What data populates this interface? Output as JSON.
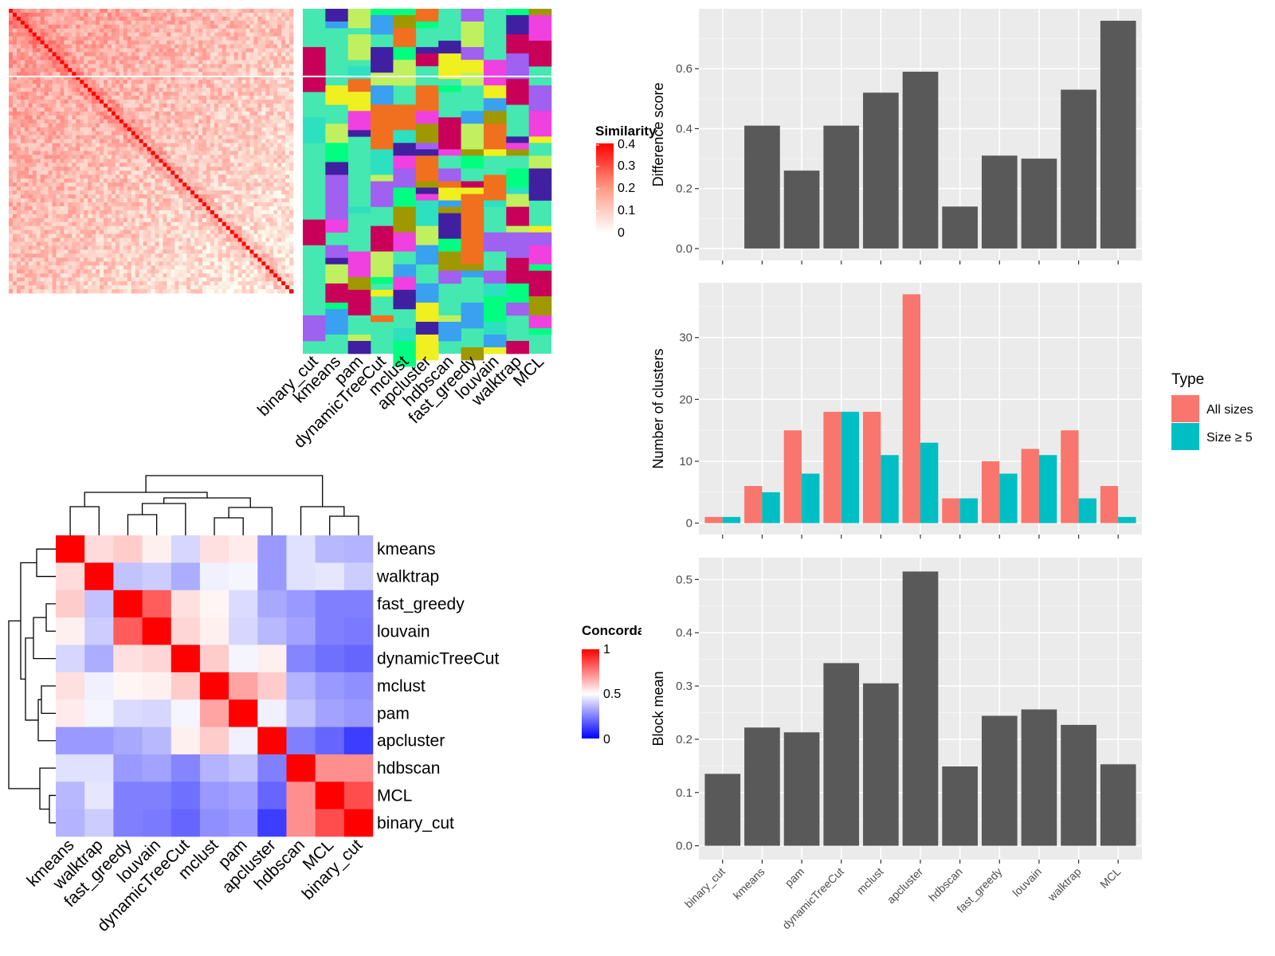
{
  "colors": {
    "sim_high": "#ff0000",
    "sim_low": "#ffffff",
    "conc_high": "#ff0000",
    "conc_mid": "#ffffff",
    "conc_low": "#0000ff",
    "bar_fill": "#595959",
    "panel_bg": "#ebebeb",
    "all_sizes": "#f8766d",
    "size5": "#00bfc4",
    "tree": "#000000"
  },
  "similarity_panel": {
    "legend_title": "Similarity",
    "legend_ticks": [
      "0.4",
      "0.3",
      "0.2",
      "0.1",
      "0"
    ],
    "method_labels": [
      "binary_cut",
      "kmeans",
      "pam",
      "dynamicTreeCut",
      "mclust",
      "apcluster",
      "hdbscan",
      "fast_greedy",
      "louvain",
      "walktrap",
      "MCL"
    ]
  },
  "concordance_panel": {
    "legend_title": "Concordance",
    "legend_ticks": [
      "1",
      "0.5",
      "0"
    ]
  },
  "chart_data": [
    {
      "type": "heatmap",
      "id": "concordance",
      "rows": [
        "kmeans",
        "walktrap",
        "fast_greedy",
        "louvain",
        "dynamicTreeCut",
        "mclust",
        "pam",
        "apcluster",
        "hdbscan",
        "MCL",
        "binary_cut"
      ],
      "columns": [
        "kmeans",
        "walktrap",
        "fast_greedy",
        "louvain",
        "dynamicTreeCut",
        "mclust",
        "pam",
        "apcluster",
        "hdbscan",
        "MCL",
        "binary_cut"
      ],
      "values": [
        [
          1.0,
          0.57,
          0.6,
          0.53,
          0.42,
          0.56,
          0.54,
          0.3,
          0.44,
          0.36,
          0.35
        ],
        [
          0.57,
          1.0,
          0.38,
          0.4,
          0.34,
          0.47,
          0.48,
          0.3,
          0.44,
          0.45,
          0.4
        ],
        [
          0.6,
          0.38,
          1.0,
          0.82,
          0.56,
          0.52,
          0.43,
          0.33,
          0.3,
          0.25,
          0.25
        ],
        [
          0.53,
          0.4,
          0.82,
          1.0,
          0.58,
          0.53,
          0.42,
          0.36,
          0.32,
          0.25,
          0.24
        ],
        [
          0.42,
          0.34,
          0.56,
          0.58,
          1.0,
          0.6,
          0.48,
          0.53,
          0.26,
          0.22,
          0.2
        ],
        [
          0.56,
          0.47,
          0.52,
          0.53,
          0.6,
          1.0,
          0.68,
          0.6,
          0.35,
          0.3,
          0.28
        ],
        [
          0.54,
          0.48,
          0.43,
          0.42,
          0.48,
          0.68,
          1.0,
          0.47,
          0.38,
          0.32,
          0.3
        ],
        [
          0.3,
          0.3,
          0.33,
          0.36,
          0.53,
          0.6,
          0.47,
          1.0,
          0.25,
          0.2,
          0.12
        ],
        [
          0.44,
          0.44,
          0.3,
          0.32,
          0.26,
          0.35,
          0.38,
          0.25,
          1.0,
          0.72,
          0.72
        ],
        [
          0.36,
          0.45,
          0.25,
          0.25,
          0.22,
          0.3,
          0.32,
          0.2,
          0.72,
          1.0,
          0.85
        ],
        [
          0.35,
          0.4,
          0.25,
          0.24,
          0.2,
          0.28,
          0.3,
          0.12,
          0.72,
          0.85,
          1.0
        ]
      ],
      "scale": [
        0,
        0.5,
        1
      ],
      "legend_title": "Concordance"
    },
    {
      "type": "bar",
      "id": "difference",
      "categories": [
        "binary_cut",
        "kmeans",
        "pam",
        "dynamicTreeCut",
        "mclust",
        "apcluster",
        "hdbscan",
        "fast_greedy",
        "louvain",
        "walktrap",
        "MCL"
      ],
      "values": [
        0,
        0.41,
        0.26,
        0.41,
        0.52,
        0.59,
        0.14,
        0.31,
        0.3,
        0.53,
        0.76
      ],
      "ylabel": "Difference score",
      "ylim": [
        -0.04,
        0.8
      ],
      "yticks": [
        0.0,
        0.2,
        0.4,
        0.6
      ],
      "ytick_labels": [
        "0.0",
        "0.2",
        "0.4",
        "0.6"
      ]
    },
    {
      "type": "bar",
      "id": "nclusters",
      "categories": [
        "binary_cut",
        "kmeans",
        "pam",
        "dynamicTreeCut",
        "mclust",
        "apcluster",
        "hdbscan",
        "fast_greedy",
        "louvain",
        "walktrap",
        "MCL"
      ],
      "series": [
        {
          "name": "All sizes",
          "values": [
            1,
            6,
            15,
            18,
            18,
            37,
            4,
            10,
            12,
            15,
            6
          ]
        },
        {
          "name": "Size ≥ 5",
          "values": [
            1,
            5,
            8,
            18,
            11,
            13,
            4,
            8,
            11,
            4,
            1
          ]
        }
      ],
      "ylabel": "Number of clusters",
      "ylim": [
        -1.85,
        38.85
      ],
      "yticks": [
        0,
        10,
        20,
        30
      ],
      "ytick_labels": [
        "0",
        "10",
        "20",
        "30"
      ],
      "legend_title": "Type"
    },
    {
      "type": "bar",
      "id": "blockmean",
      "categories": [
        "binary_cut",
        "kmeans",
        "pam",
        "dynamicTreeCut",
        "mclust",
        "apcluster",
        "hdbscan",
        "fast_greedy",
        "louvain",
        "walktrap",
        "MCL"
      ],
      "values": [
        0.135,
        0.222,
        0.213,
        0.343,
        0.305,
        0.515,
        0.149,
        0.244,
        0.256,
        0.227,
        0.153
      ],
      "ylabel": "Block mean",
      "ylim": [
        -0.026,
        0.541
      ],
      "yticks": [
        0.0,
        0.1,
        0.2,
        0.3,
        0.4,
        0.5
      ],
      "ytick_labels": [
        "0.0",
        "0.1",
        "0.2",
        "0.3",
        "0.4",
        "0.5"
      ]
    }
  ]
}
